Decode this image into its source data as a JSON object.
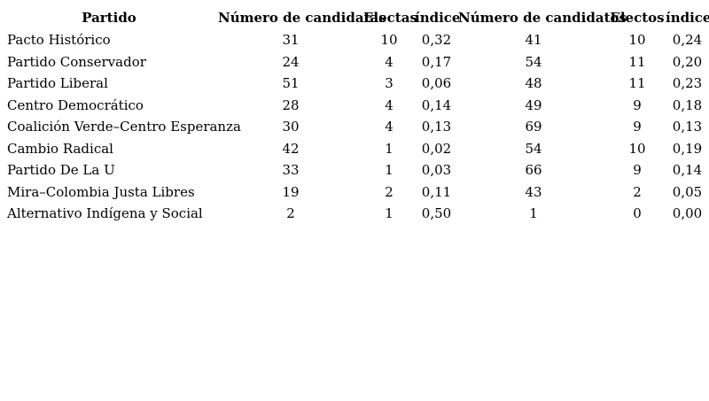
{
  "chart_data": {
    "type": "table",
    "title": "",
    "columns": [
      "Partido",
      "Número de candidatas",
      "Electas",
      "índice",
      "Número de candidatos",
      "Electos",
      "índice"
    ],
    "rows": [
      [
        "Pacto Histórico",
        "31",
        "10",
        "0,32",
        "41",
        "10",
        "0,24"
      ],
      [
        "Partido Conservador",
        "24",
        "4",
        "0,17",
        "54",
        "11",
        "0,20"
      ],
      [
        "Partido Liberal",
        "51",
        "3",
        "0,06",
        "48",
        "11",
        "0,23"
      ],
      [
        "Centro Democrático",
        "28",
        "4",
        "0,14",
        "49",
        "9",
        "0,18"
      ],
      [
        "Coalición Verde–Centro Esperanza",
        "30",
        "4",
        "0,13",
        "69",
        "9",
        "0,13"
      ],
      [
        "Cambio Radical",
        "42",
        "1",
        "0,02",
        "54",
        "10",
        "0,19"
      ],
      [
        "Partido De La U",
        "33",
        "1",
        "0,03",
        "66",
        "9",
        "0,14"
      ],
      [
        "Mira–Colombia Justa Libres",
        "19",
        "2",
        "0,11",
        "43",
        "2",
        "0,05"
      ],
      [
        "Alternativo Indígena y Social",
        "2",
        "1",
        "0,50",
        "1",
        "0",
        "0,00"
      ]
    ],
    "colors": {
      "text": "#000000",
      "background": "#ffffff"
    },
    "layout_hints": {
      "borders": "none",
      "header_bold": true,
      "first_column_align": "left",
      "value_columns_align": "center"
    }
  }
}
